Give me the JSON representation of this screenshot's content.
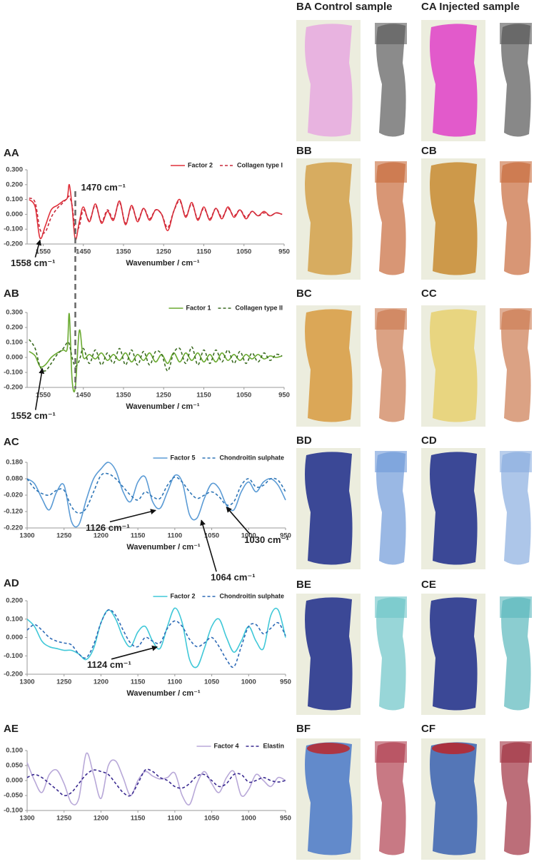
{
  "chart_data": [
    {
      "type": "line",
      "title": "AA",
      "xlabel": "Wavenumber / cm⁻¹",
      "x": [
        1585,
        1570,
        1558,
        1545,
        1530,
        1515,
        1500,
        1490,
        1485,
        1478,
        1470,
        1460,
        1450,
        1435,
        1420,
        1405,
        1390,
        1375,
        1360,
        1345,
        1330,
        1315,
        1300,
        1285,
        1270,
        1255,
        1240,
        1225,
        1210,
        1195,
        1180,
        1165,
        1150,
        1135,
        1120,
        1105,
        1090,
        1075,
        1060,
        1045,
        1030,
        1015,
        1000,
        985,
        970,
        955
      ],
      "series": [
        {
          "name": "Factor 2",
          "color": "#e0303a",
          "line_style": "solid",
          "values": [
            0.1,
            0.05,
            -0.16,
            -0.08,
            0.03,
            0.06,
            0.09,
            0.11,
            0.2,
            0.05,
            -0.17,
            -0.05,
            0.05,
            -0.05,
            0.07,
            -0.06,
            0.02,
            -0.04,
            0.09,
            -0.07,
            0.06,
            -0.05,
            0.04,
            -0.04,
            0.03,
            0.0,
            -0.11,
            0.02,
            0.1,
            -0.02,
            0.08,
            -0.04,
            0.05,
            -0.04,
            0.04,
            -0.03,
            0.05,
            -0.02,
            0.03,
            -0.03,
            0.02,
            -0.01,
            0.02,
            -0.01,
            0.01,
            0.0
          ]
        },
        {
          "name": "Collagen type I",
          "color": "#c8283a",
          "line_style": "dashed",
          "values": [
            0.11,
            0.08,
            -0.1,
            -0.12,
            -0.02,
            0.04,
            0.08,
            0.11,
            0.12,
            0.06,
            -0.1,
            -0.08,
            0.03,
            -0.04,
            0.06,
            -0.05,
            0.03,
            -0.03,
            0.08,
            -0.06,
            0.05,
            -0.04,
            0.04,
            -0.03,
            0.03,
            0.0,
            -0.09,
            0.02,
            0.09,
            -0.01,
            0.07,
            -0.03,
            0.04,
            -0.03,
            0.04,
            -0.02,
            0.04,
            -0.01,
            0.03,
            -0.02,
            0.02,
            -0.01,
            0.01,
            -0.01,
            0.01,
            0.0
          ]
        }
      ],
      "xlim": [
        1590,
        950
      ],
      "xticks": [
        1550,
        1450,
        1350,
        1250,
        1150,
        1050,
        950
      ],
      "ylim": [
        -0.2,
        0.3
      ],
      "yticks": [
        {
          "value": -0.2,
          "label": "-0.200"
        },
        {
          "value": -0.1,
          "label": "-0.100"
        },
        {
          "value": 0,
          "label": "0.000"
        },
        {
          "value": 0.1,
          "label": "0.100"
        },
        {
          "value": 0.2,
          "label": "0.200"
        },
        {
          "value": 0.3,
          "label": "0.300"
        }
      ],
      "grid": false,
      "annotations": [
        {
          "text": "1470 cm⁻¹",
          "x": 1470,
          "y": -0.17
        },
        {
          "text": "1558 cm⁻¹",
          "x": 1558,
          "y": -0.16
        }
      ]
    },
    {
      "type": "line",
      "title": "AB",
      "xlabel": "Wavenumber / cm⁻¹",
      "x": [
        1585,
        1570,
        1558,
        1545,
        1530,
        1515,
        1500,
        1490,
        1485,
        1478,
        1470,
        1460,
        1450,
        1435,
        1420,
        1405,
        1390,
        1375,
        1360,
        1345,
        1330,
        1315,
        1300,
        1285,
        1270,
        1255,
        1240,
        1225,
        1210,
        1195,
        1180,
        1165,
        1150,
        1135,
        1120,
        1105,
        1090,
        1075,
        1060,
        1045,
        1030,
        1015,
        1000,
        985,
        970,
        955
      ],
      "series": [
        {
          "name": "Factor 1",
          "color": "#6aaa30",
          "line_style": "solid",
          "values": [
            0.04,
            0.01,
            -0.06,
            -0.05,
            0.0,
            0.03,
            0.05,
            0.06,
            0.29,
            -0.15,
            -0.2,
            0.18,
            0.0,
            0.02,
            -0.01,
            0.03,
            -0.02,
            0.02,
            -0.02,
            0.03,
            -0.03,
            0.02,
            -0.02,
            0.03,
            -0.03,
            0.02,
            -0.04,
            0.03,
            -0.03,
            0.03,
            -0.02,
            0.03,
            -0.03,
            0.02,
            -0.03,
            0.03,
            -0.02,
            0.02,
            -0.02,
            0.02,
            -0.01,
            0.02,
            -0.01,
            0.01,
            0.0,
            0.01
          ]
        },
        {
          "name": "Collagen type II",
          "color": "#3a6a20",
          "line_style": "dashed",
          "values": [
            0.12,
            0.06,
            -0.06,
            -0.09,
            -0.04,
            0.02,
            0.06,
            0.1,
            0.09,
            0.0,
            -0.06,
            -0.02,
            0.06,
            -0.04,
            0.05,
            -0.05,
            0.03,
            -0.04,
            0.06,
            -0.05,
            0.05,
            -0.05,
            0.04,
            -0.05,
            0.04,
            0.02,
            -0.09,
            0.03,
            0.06,
            -0.04,
            0.07,
            -0.05,
            0.05,
            -0.04,
            0.05,
            -0.03,
            0.05,
            -0.04,
            0.04,
            -0.04,
            0.03,
            -0.03,
            0.03,
            -0.02,
            0.02,
            0.01
          ]
        }
      ],
      "xlim": [
        1590,
        950
      ],
      "xticks": [
        1550,
        1450,
        1350,
        1250,
        1150,
        1050,
        950
      ],
      "ylim": [
        -0.2,
        0.3
      ],
      "yticks": [
        {
          "value": -0.2,
          "label": "-0.200"
        },
        {
          "value": -0.1,
          "label": "-0.100"
        },
        {
          "value": 0,
          "label": "0.000"
        },
        {
          "value": 0.1,
          "label": "0.100"
        },
        {
          "value": 0.2,
          "label": "0.200"
        },
        {
          "value": 0.3,
          "label": "0.300"
        }
      ],
      "grid": false,
      "annotations": [
        {
          "text": "1552 cm⁻¹",
          "x": 1552,
          "y": -0.06
        }
      ]
    },
    {
      "type": "line",
      "title": "AC",
      "xlabel": "Wavenumber / cm⁻¹",
      "x": [
        1300,
        1290,
        1280,
        1270,
        1260,
        1250,
        1240,
        1230,
        1220,
        1210,
        1200,
        1190,
        1180,
        1170,
        1160,
        1150,
        1140,
        1130,
        1120,
        1110,
        1100,
        1090,
        1080,
        1070,
        1060,
        1050,
        1040,
        1030,
        1020,
        1010,
        1000,
        990,
        980,
        970,
        960,
        950
      ],
      "series": [
        {
          "name": "Factor 5",
          "color": "#5b9bd5",
          "line_style": "solid",
          "values": [
            0.08,
            0.05,
            -0.04,
            -0.11,
            0.0,
            0.04,
            -0.18,
            -0.2,
            -0.05,
            0.08,
            0.14,
            0.18,
            0.13,
            0.0,
            -0.06,
            0.06,
            0.09,
            -0.06,
            -0.1,
            0.0,
            0.1,
            0.06,
            -0.14,
            -0.16,
            -0.04,
            0.05,
            0.02,
            -0.08,
            -0.11,
            0.0,
            0.06,
            0.0,
            0.06,
            0.08,
            0.04,
            -0.05
          ]
        },
        {
          "name": "Chondroitin sulphate",
          "color": "#2e75b6",
          "line_style": "dashed",
          "values": [
            0.08,
            0.02,
            -0.01,
            -0.02,
            0.01,
            0.01,
            -0.09,
            -0.13,
            -0.1,
            0.0,
            0.1,
            0.11,
            0.08,
            0.03,
            -0.02,
            -0.05,
            0.0,
            -0.03,
            -0.04,
            0.04,
            0.09,
            0.06,
            0.0,
            -0.04,
            -0.02,
            0.0,
            -0.03,
            -0.08,
            -0.06,
            0.04,
            0.08,
            0.03,
            0.04,
            0.08,
            0.07,
            0.0
          ]
        }
      ],
      "xlim": [
        1300,
        950
      ],
      "xticks": [
        1300,
        1250,
        1200,
        1150,
        1100,
        1050,
        1000,
        950
      ],
      "ylim": [
        -0.22,
        0.18
      ],
      "yticks": [
        {
          "value": -0.22,
          "label": "-0.220"
        },
        {
          "value": -0.12,
          "label": "-0.120"
        },
        {
          "value": -0.02,
          "label": "-0.020"
        },
        {
          "value": 0.08,
          "label": "0.080"
        },
        {
          "value": 0.18,
          "label": "0.180"
        }
      ],
      "grid": false,
      "annotations": [
        {
          "text": "1126 cm⁻¹",
          "x": 1126,
          "y": -0.1
        },
        {
          "text": "1064 cm⁻¹",
          "x": 1064,
          "y": -0.16
        },
        {
          "text": "1030 cm⁻¹",
          "x": 1030,
          "y": -0.08
        }
      ]
    },
    {
      "type": "line",
      "title": "AD",
      "xlabel": "Wavenumber / cm⁻¹",
      "x": [
        1300,
        1290,
        1280,
        1270,
        1260,
        1250,
        1240,
        1230,
        1220,
        1210,
        1200,
        1190,
        1180,
        1170,
        1160,
        1150,
        1140,
        1130,
        1120,
        1110,
        1100,
        1090,
        1080,
        1070,
        1060,
        1050,
        1040,
        1030,
        1020,
        1010,
        1000,
        990,
        980,
        970,
        960,
        950
      ],
      "series": [
        {
          "name": "Factor 2",
          "color": "#40c8d8",
          "line_style": "solid",
          "values": [
            0.1,
            0.06,
            -0.02,
            -0.05,
            -0.06,
            -0.07,
            -0.07,
            -0.09,
            -0.12,
            -0.06,
            0.08,
            0.15,
            0.1,
            0.0,
            -0.05,
            0.03,
            0.06,
            -0.02,
            -0.06,
            0.06,
            0.16,
            0.08,
            -0.12,
            -0.16,
            -0.06,
            0.06,
            0.1,
            0.0,
            -0.08,
            -0.02,
            0.06,
            -0.02,
            -0.06,
            0.12,
            0.15,
            0.0
          ]
        },
        {
          "name": "Chondroitin sulphate",
          "color": "#2e6ab6",
          "line_style": "dashed",
          "values": [
            0.04,
            0.07,
            0.04,
            0.0,
            -0.02,
            -0.03,
            -0.04,
            -0.09,
            -0.11,
            -0.04,
            0.08,
            0.15,
            0.12,
            0.04,
            -0.03,
            -0.05,
            0.0,
            -0.02,
            -0.03,
            0.05,
            0.09,
            0.06,
            -0.01,
            -0.05,
            -0.03,
            0.0,
            -0.05,
            -0.12,
            -0.16,
            -0.05,
            0.06,
            0.07,
            0.02,
            0.05,
            0.08,
            0.01
          ]
        }
      ],
      "xlim": [
        1300,
        950
      ],
      "xticks": [
        1300,
        1250,
        1200,
        1150,
        1100,
        1050,
        1000,
        950
      ],
      "ylim": [
        -0.2,
        0.2
      ],
      "yticks": [
        {
          "value": -0.2,
          "label": "-0.200"
        },
        {
          "value": -0.1,
          "label": "-0.100"
        },
        {
          "value": 0,
          "label": "0.000"
        },
        {
          "value": 0.1,
          "label": "0.100"
        },
        {
          "value": 0.2,
          "label": "0.200"
        }
      ],
      "grid": false,
      "annotations": [
        {
          "text": "1124 cm⁻¹",
          "x": 1124,
          "y": -0.04
        }
      ]
    },
    {
      "type": "line",
      "title": "AE",
      "x": [
        1300,
        1290,
        1280,
        1270,
        1260,
        1250,
        1240,
        1230,
        1220,
        1210,
        1200,
        1190,
        1180,
        1170,
        1160,
        1150,
        1140,
        1130,
        1120,
        1110,
        1100,
        1090,
        1080,
        1070,
        1060,
        1050,
        1040,
        1030,
        1020,
        1010,
        1000,
        990,
        980,
        970,
        960,
        950
      ],
      "series": [
        {
          "name": "Factor 4",
          "color": "#b8a8d8",
          "line_style": "solid",
          "values": [
            0.06,
            0.0,
            -0.04,
            0.02,
            0.035,
            -0.01,
            -0.075,
            -0.06,
            0.09,
            0.02,
            -0.06,
            0.05,
            0.065,
            0.01,
            -0.05,
            0.0,
            0.03,
            0.015,
            0.005,
            0.01,
            0.025,
            -0.05,
            -0.08,
            -0.01,
            0.03,
            -0.01,
            -0.04,
            0.01,
            0.03,
            -0.05,
            -0.03,
            0.02,
            0.0,
            -0.02,
            0.01,
            0.0
          ]
        },
        {
          "name": "Elastin",
          "color": "#3a2a90",
          "line_style": "dashed",
          "values": [
            0.01,
            0.02,
            0.01,
            -0.01,
            -0.03,
            -0.05,
            -0.04,
            -0.01,
            0.02,
            0.035,
            0.03,
            0.02,
            -0.01,
            -0.04,
            -0.05,
            -0.01,
            0.035,
            0.03,
            0.01,
            0.0,
            -0.02,
            -0.025,
            -0.01,
            0.015,
            0.02,
            0.0,
            -0.02,
            -0.01,
            0.02,
            0.02,
            -0.005,
            0.0,
            0.01,
            0.0,
            -0.005,
            0.0
          ]
        }
      ],
      "xlim": [
        1300,
        950
      ],
      "xticks": [
        1300,
        1250,
        1200,
        1150,
        1100,
        1050,
        1000,
        950
      ],
      "ylim": [
        -0.1,
        0.1
      ],
      "yticks": [
        {
          "value": -0.1,
          "label": "-0.100"
        },
        {
          "value": -0.05,
          "label": "-0.050"
        },
        {
          "value": 0,
          "label": "0.000"
        },
        {
          "value": 0.05,
          "label": "0.050"
        },
        {
          "value": 0.1,
          "label": "0.100"
        }
      ],
      "grid": false,
      "annotations": []
    }
  ],
  "image_labels": [
    "BA Control sample",
    "CA Injected sample",
    "BB",
    "CB",
    "BC",
    "CC",
    "BD",
    "CD",
    "BE",
    "CE",
    "BF",
    "CF"
  ]
}
